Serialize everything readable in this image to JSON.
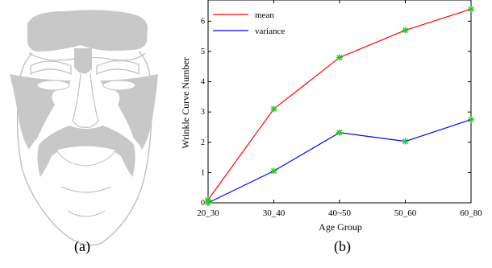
{
  "figure": {
    "caption_a": "(a)",
    "caption_b": "(b)"
  },
  "chart_data": {
    "type": "line",
    "categories": [
      "20_30",
      "30_40",
      "40~50",
      "50_60",
      "60_80"
    ],
    "series": [
      {
        "name": "mean",
        "values": [
          0.1,
          3.1,
          4.8,
          5.7,
          6.4
        ],
        "color": "#ff0000"
      },
      {
        "name": "variance",
        "values": [
          0.0,
          1.05,
          2.32,
          2.03,
          2.75
        ],
        "color": "#0000ff"
      }
    ],
    "marker_color": "#22cc22",
    "xlabel": "Age Group",
    "ylabel": "Wrinkle Curve Number",
    "ylim": [
      0,
      6.7
    ],
    "yticks": [
      0,
      1,
      2,
      3,
      4,
      5,
      6
    ],
    "legend_position": "top-left",
    "grid": false
  }
}
